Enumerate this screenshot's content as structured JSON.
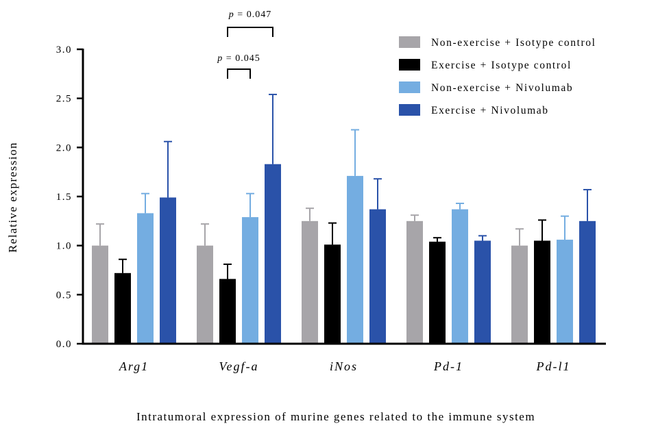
{
  "chart_data": {
    "type": "bar",
    "categories": [
      "Arg1",
      "Vegf-a",
      "iNos",
      "Pd-1",
      "Pd-l1"
    ],
    "series": [
      {
        "name": "Non-exercise + Isotype control",
        "color": "#a7a5a9",
        "values": [
          1.0,
          1.0,
          1.25,
          1.25,
          1.0
        ],
        "errors": [
          0.22,
          0.22,
          0.13,
          0.06,
          0.17
        ]
      },
      {
        "name": "Exercise + Isotype control",
        "color": "#000000",
        "values": [
          0.72,
          0.66,
          1.01,
          1.04,
          1.05
        ],
        "errors": [
          0.14,
          0.15,
          0.22,
          0.04,
          0.21
        ]
      },
      {
        "name": "Non-exercise + Nivolumab",
        "color": "#74ade1",
        "values": [
          1.33,
          1.29,
          1.71,
          1.37,
          1.06
        ],
        "errors": [
          0.2,
          0.24,
          0.47,
          0.06,
          0.24
        ]
      },
      {
        "name": "Exercise + Nivolumab",
        "color": "#2a52a9",
        "values": [
          1.49,
          1.83,
          1.37,
          1.05,
          1.25
        ],
        "errors": [
          0.57,
          0.71,
          0.31,
          0.05,
          0.32
        ]
      }
    ],
    "ylabel": "Relative expression",
    "xlabel": "Intratumoral expression of murine genes related to the immune system",
    "ylim": [
      0,
      3.0
    ],
    "yticks": [
      "0.0",
      "0.5",
      "1.0",
      "1.5",
      "2.0",
      "2.5",
      "3.0"
    ],
    "legend_position": "top-right",
    "annotations": [
      {
        "text_p": "p",
        "text_eq": " = 0.045",
        "category": "Vegf-a",
        "from_series": 1,
        "to_series": 2
      },
      {
        "text_p": "p",
        "text_eq": " = 0.047",
        "category": "Vegf-a",
        "from_series": 1,
        "to_series": 3
      }
    ]
  }
}
